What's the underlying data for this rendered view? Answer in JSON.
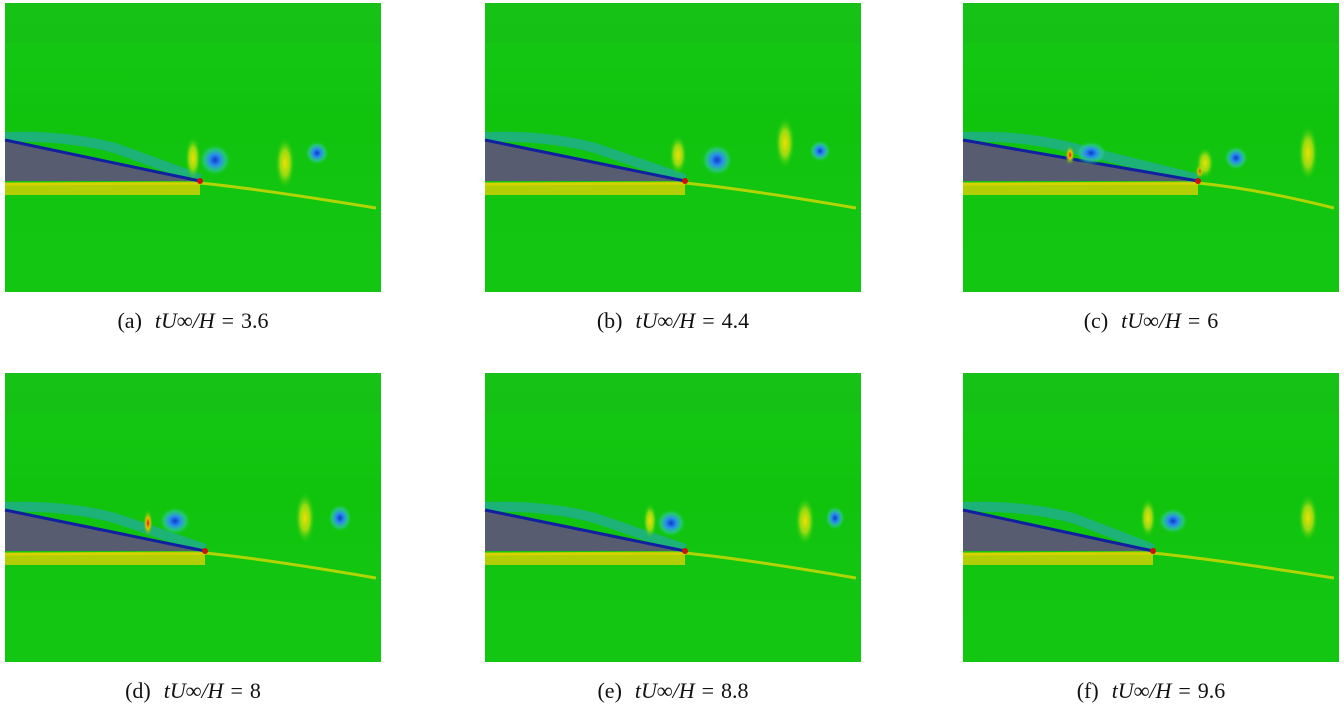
{
  "panels": [
    {
      "label": "(a)",
      "expression": "tU∞/H",
      "relation": "=",
      "value": 3.6
    },
    {
      "label": "(b)",
      "expression": "tU∞/H",
      "relation": "=",
      "value": 4.4
    },
    {
      "label": "(c)",
      "expression": "tU∞/H",
      "relation": "=",
      "value": 6
    },
    {
      "label": "(d)",
      "expression": "tU∞/H",
      "relation": "=",
      "value": 8
    },
    {
      "label": "(e)",
      "expression": "tU∞/H",
      "relation": "=",
      "value": 8.8
    },
    {
      "label": "(f)",
      "expression": "tU∞/H",
      "relation": "=",
      "value": 9.6
    }
  ]
}
